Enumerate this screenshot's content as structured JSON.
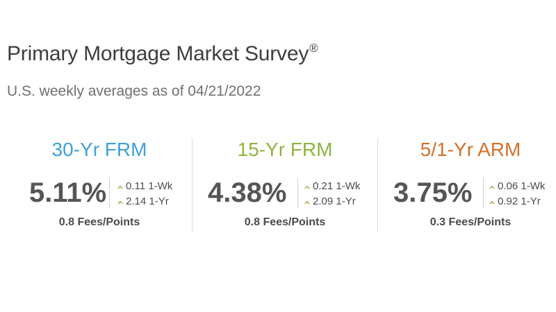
{
  "header": {
    "title": "Primary Mortgage Market Survey",
    "title_mark": "®",
    "subtitle": "U.S. weekly averages as of 04/21/2022"
  },
  "colors": {
    "frm30": "#3ea1d9",
    "frm15": "#8db43e",
    "arm51": "#d4702c",
    "arrow_up": "#8db43e"
  },
  "products": [
    {
      "name": "30-Yr FRM",
      "rate": "5.11%",
      "change_week": "0.11",
      "change_week_label": "1-Wk",
      "change_year": "2.14",
      "change_year_label": "1-Yr",
      "fees": "0.8 Fees/Points",
      "arrow_icon": "chevron-up-icon"
    },
    {
      "name": "15-Yr FRM",
      "rate": "4.38%",
      "change_week": "0.21",
      "change_week_label": "1-Wk",
      "change_year": "2.09",
      "change_year_label": "1-Yr",
      "fees": "0.8 Fees/Points",
      "arrow_icon": "chevron-up-icon"
    },
    {
      "name": "5/1-Yr ARM",
      "rate": "3.75%",
      "change_week": "0.06",
      "change_week_label": "1-Wk",
      "change_year": "0.92",
      "change_year_label": "1-Yr",
      "fees": "0.3 Fees/Points",
      "arrow_icon": "chevron-up-icon"
    }
  ]
}
